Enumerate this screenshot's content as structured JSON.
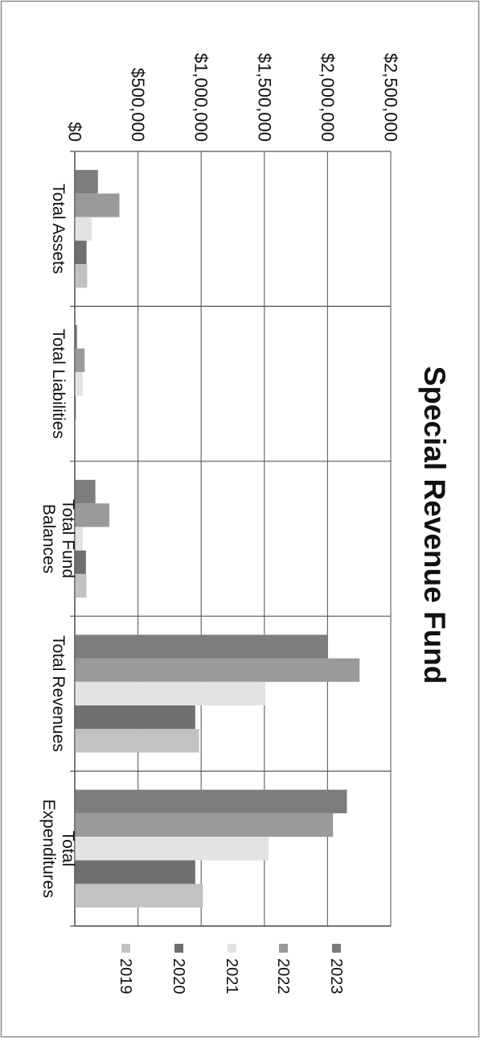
{
  "chart_data": {
    "type": "bar",
    "orientation": "horizontal",
    "title": "Special Revenue Fund",
    "categories": [
      [
        "Total Assets"
      ],
      [
        "Total Liabilities"
      ],
      [
        "Total Fund",
        "Balances"
      ],
      [
        "Total Revenues"
      ],
      [
        "Total",
        "Expenditures"
      ]
    ],
    "series": [
      {
        "name": "2023",
        "color": "#7d7d7d",
        "values": [
          180000,
          15000,
          160000,
          2000000,
          2150000
        ]
      },
      {
        "name": "2022",
        "color": "#9a9a9a",
        "values": [
          350000,
          75000,
          270000,
          2250000,
          2040000
        ]
      },
      {
        "name": "2021",
        "color": "#e3e3e3",
        "values": [
          130000,
          60000,
          60000,
          1500000,
          1530000
        ]
      },
      {
        "name": "2020",
        "color": "#6f6f6f",
        "values": [
          90000,
          5000,
          85000,
          950000,
          950000
        ]
      },
      {
        "name": "2019",
        "color": "#c2c2c2",
        "values": [
          95000,
          5000,
          90000,
          980000,
          1010000
        ]
      }
    ],
    "value_axis": {
      "min": 0,
      "max": 2500000,
      "ticks": [
        0,
        500000,
        1000000,
        1500000,
        2000000,
        2500000
      ],
      "tick_labels": [
        "$0",
        "$500,000",
        "$1,000,000",
        "$1,500,000",
        "$2,000,000",
        "$2,500,000"
      ]
    },
    "grid": true,
    "legend": "right"
  }
}
